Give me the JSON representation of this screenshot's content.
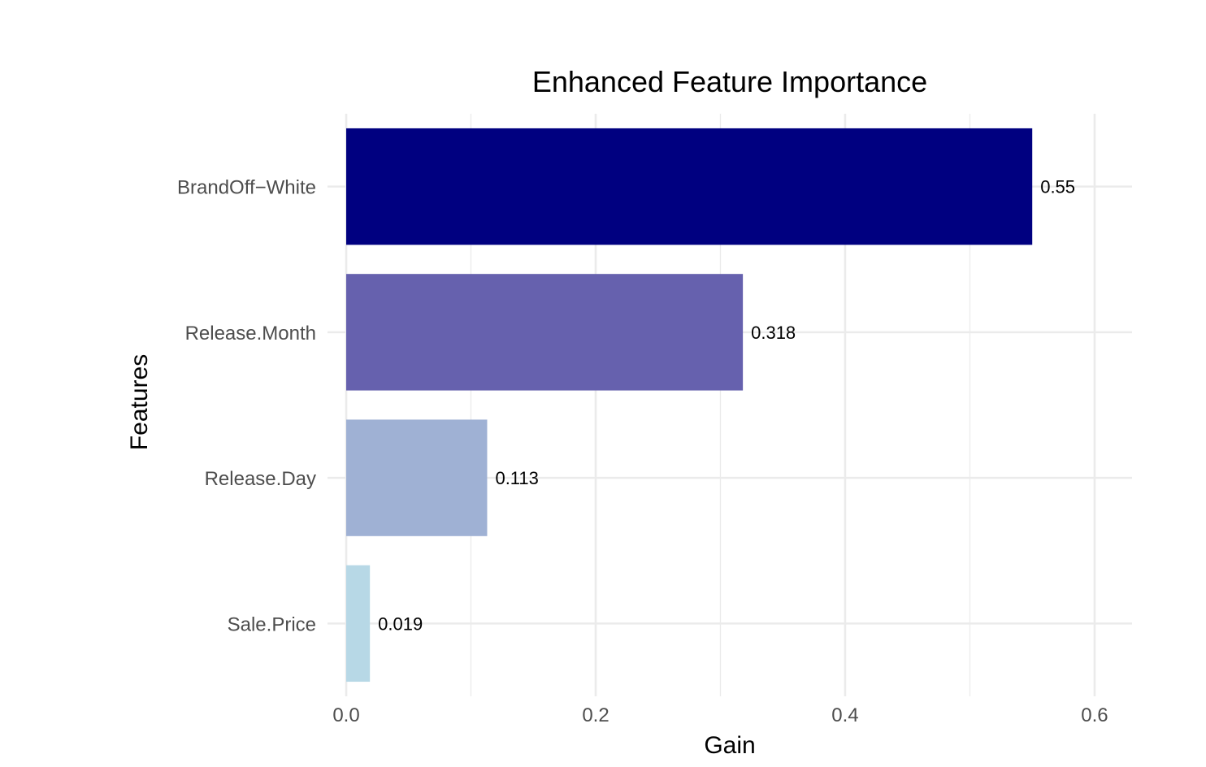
{
  "chart_data": {
    "type": "bar",
    "orientation": "horizontal",
    "title": "Enhanced Feature Importance",
    "xlabel": "Gain",
    "ylabel": "Features",
    "categories": [
      "BrandOff−White",
      "Release.Month",
      "Release.Day",
      "Sale.Price"
    ],
    "values": [
      0.55,
      0.318,
      0.113,
      0.019
    ],
    "value_labels": [
      "0.55",
      "0.318",
      "0.113",
      "0.019"
    ],
    "bar_colors": [
      "#000080",
      "#6661ae",
      "#9fb1d4",
      "#b7d8e6"
    ],
    "xlim": [
      -0.015,
      0.63
    ],
    "x_ticks": [
      0.0,
      0.2,
      0.4,
      0.6
    ],
    "x_tick_labels": [
      "0.0",
      "0.2",
      "0.4",
      "0.6"
    ],
    "x_minor_ticks": [
      0.1,
      0.3,
      0.5
    ],
    "grid": true,
    "legend": "none"
  }
}
